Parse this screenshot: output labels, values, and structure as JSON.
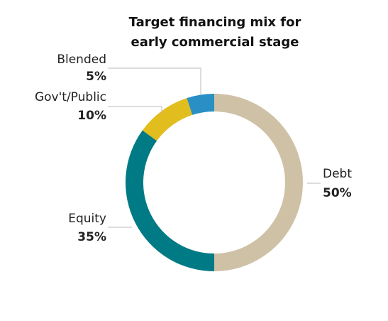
{
  "chart_data": {
    "type": "donut",
    "title": "Target financing mix for early commercial stage",
    "categories": [
      "Debt",
      "Equity",
      "Gov't/Public",
      "Blended"
    ],
    "values": [
      50,
      35,
      10,
      5
    ],
    "value_labels": [
      "50%",
      "35%",
      "10%",
      "5%"
    ],
    "colors": [
      "#cfc1a6",
      "#007a85",
      "#e1bd1d",
      "#2a8fc4"
    ]
  }
}
